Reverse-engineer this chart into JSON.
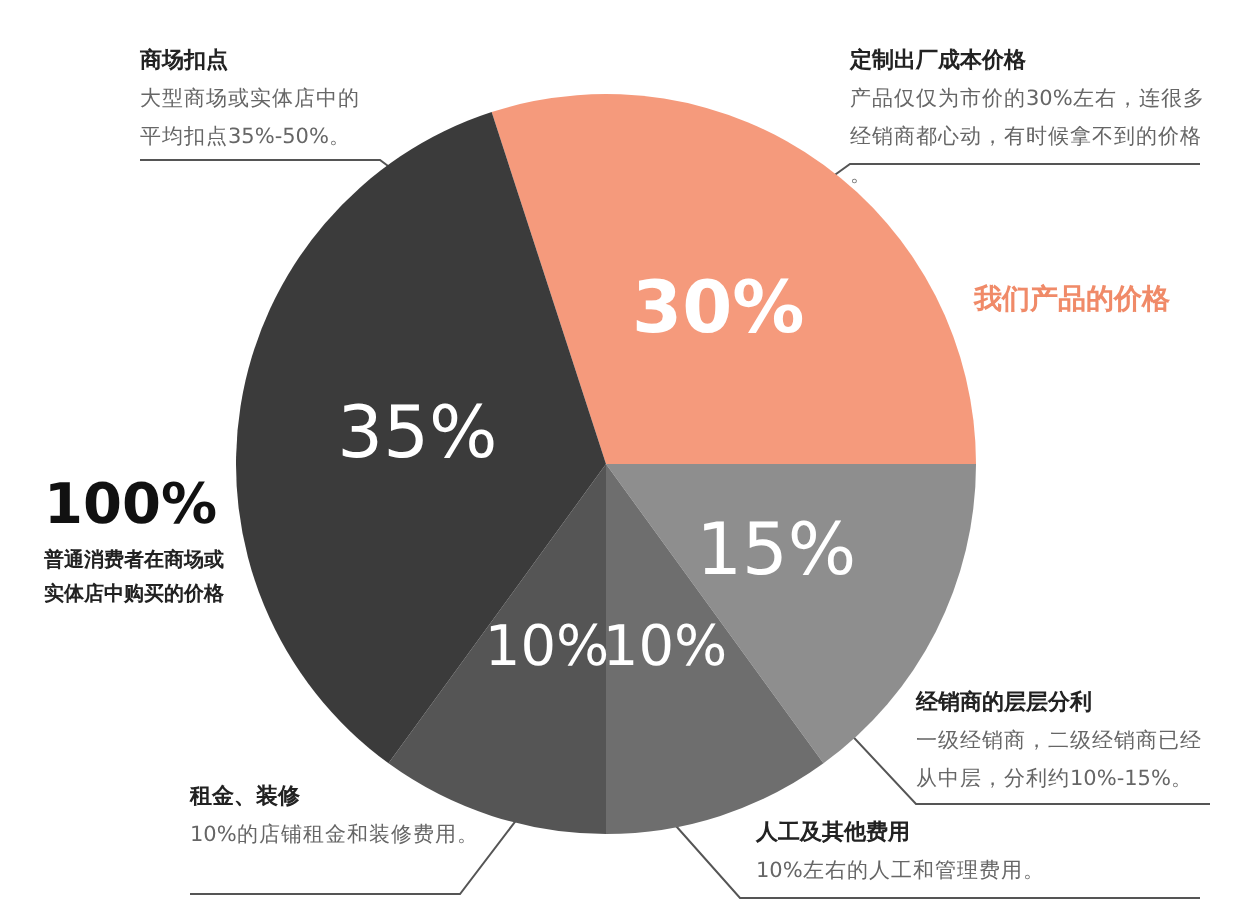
{
  "chart_data": {
    "type": "pie",
    "categories": [
      null,
      null,
      null,
      null,
      null
    ],
    "values": [
      30,
      15,
      10,
      10,
      35
    ],
    "colors": [
      "#f59a7c",
      "#8e8e8e",
      "#6e6e6e",
      "#555555",
      "#3b3b3b"
    ],
    "value_labels": [
      "30%",
      "15%",
      "10%",
      "10%",
      "35%"
    ],
    "annotations": [
      "商场扣点",
      "大型商场或实体店中的平均扣点35%-50%。",
      "定制出厂成本价格",
      "产品仅仅为市价的30%左右，连很多经销商都心动，有时候拿不到的价格。",
      "我们产品的价格",
      "100%",
      "普通消费者在商场或实体店中购买的价格",
      "经销商的层层分利",
      "一级经销商，二级经销商已经从中层，分利约10%-15%。",
      "租金、装修",
      "10%的店铺租金和装修费用。",
      "人工及其他费用",
      "10%左右的人工和管理费用。"
    ]
  }
}
